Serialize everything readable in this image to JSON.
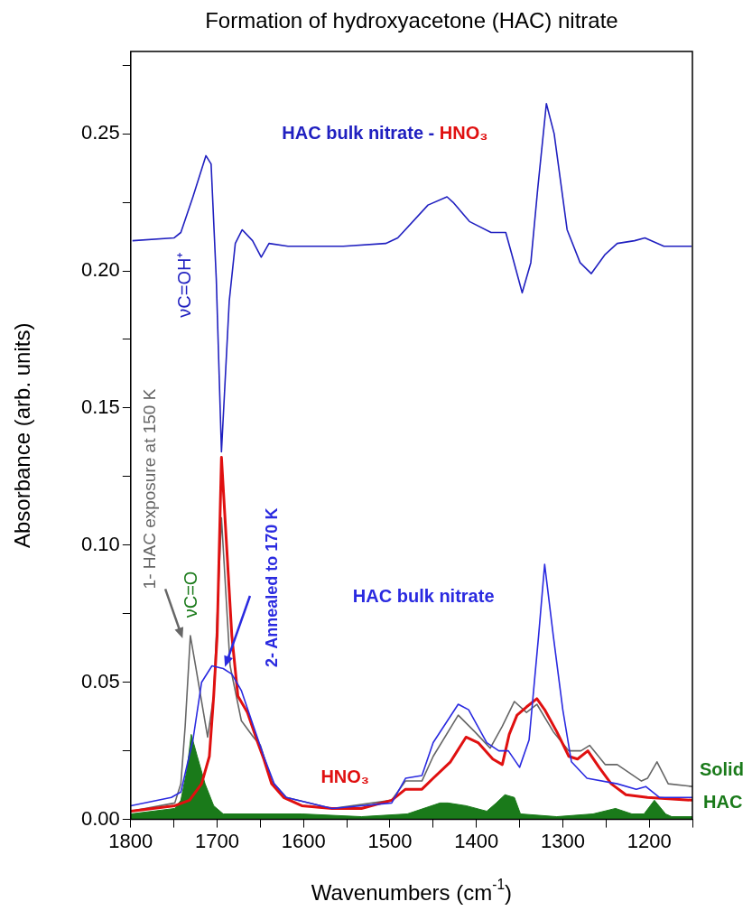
{
  "chart_data": {
    "type": "line",
    "title": "Formation of hydroxyacetone (HAC) nitrate",
    "xlabel": "Wavenumbers (cm$^{-1}$)",
    "ylabel": "Absorbance (arb. units)",
    "xlim": [
      1800,
      1150
    ],
    "xticks": [
      1800,
      {
        "value": 1750,
        "label": null
      },
      1700,
      {
        "value": 1650,
        "label": null
      },
      1600,
      {
        "value": 1550,
        "label": null
      },
      1500,
      {
        "value": 1450,
        "label": null
      },
      1400,
      {
        "value": 1350,
        "label": null
      },
      1300,
      {
        "value": 1250,
        "label": null
      },
      1200,
      {
        "value": 1150,
        "label": null
      }
    ],
    "ylim": [
      0,
      0.28
    ],
    "yticks": [
      {
        "value": 0,
        "label": "0.00"
      },
      {
        "value": 0.025,
        "label": null
      },
      0.05,
      {
        "value": 0.075,
        "label": null
      },
      {
        "value": 0.1,
        "label": "0.10"
      },
      {
        "value": 0.125,
        "label": null
      },
      0.15,
      {
        "value": 0.175,
        "label": null
      },
      {
        "value": 0.2,
        "label": "0.20"
      },
      {
        "value": 0.225,
        "label": null
      },
      0.25,
      {
        "value": 0.275,
        "label": null
      }
    ],
    "legend": false,
    "series": [
      {
        "name": "HAC bulk nitrate - HNO₃",
        "color": "#2020c0",
        "x": [
          1798,
          1750,
          1742,
          1728,
          1713,
          1707,
          1701,
          1695,
          1686,
          1679,
          1671,
          1659,
          1649,
          1640,
          1618,
          1554,
          1505,
          1491,
          1456,
          1434,
          1427,
          1408,
          1383,
          1366,
          1359,
          1347,
          1337,
          1329,
          1319,
          1310,
          1295,
          1280,
          1267,
          1251,
          1237,
          1217,
          1205,
          1183,
          1151
        ],
        "values": [
          0.211,
          0.212,
          0.214,
          0.227,
          0.242,
          0.239,
          0.197,
          0.134,
          0.189,
          0.21,
          0.215,
          0.211,
          0.205,
          0.21,
          0.209,
          0.209,
          0.21,
          0.212,
          0.224,
          0.227,
          0.225,
          0.218,
          0.214,
          0.214,
          0.206,
          0.192,
          0.203,
          0.23,
          0.261,
          0.25,
          0.215,
          0.203,
          0.199,
          0.206,
          0.21,
          0.211,
          0.212,
          0.209,
          0.209
        ]
      },
      {
        "name": "HAC bulk nitrate",
        "color": "#2a2ae0",
        "x": [
          1800,
          1753,
          1742,
          1728,
          1718,
          1706,
          1693,
          1683,
          1672,
          1658,
          1646,
          1634,
          1620,
          1567,
          1498,
          1482,
          1463,
          1450,
          1421,
          1409,
          1388,
          1374,
          1363,
          1350,
          1339,
          1328,
          1321,
          1311,
          1300,
          1290,
          1272,
          1237,
          1215,
          1204,
          1188,
          1150
        ],
        "values": [
          0.005,
          0.008,
          0.01,
          0.029,
          0.05,
          0.056,
          0.055,
          0.053,
          0.047,
          0.034,
          0.023,
          0.013,
          0.008,
          0.004,
          0.006,
          0.015,
          0.016,
          0.028,
          0.042,
          0.04,
          0.028,
          0.025,
          0.025,
          0.019,
          0.029,
          0.067,
          0.093,
          0.067,
          0.04,
          0.021,
          0.015,
          0.013,
          0.011,
          0.012,
          0.008,
          0.008
        ]
      },
      {
        "name": "HNO₃",
        "color": "#e01010",
        "x": [
          1800,
          1749,
          1732,
          1718,
          1709,
          1704,
          1700,
          1695,
          1683,
          1676,
          1665,
          1653,
          1646,
          1637,
          1623,
          1602,
          1567,
          1533,
          1498,
          1482,
          1463,
          1450,
          1430,
          1412,
          1398,
          1381,
          1370,
          1362,
          1353,
          1342,
          1330,
          1321,
          1307,
          1293,
          1283,
          1271,
          1258,
          1244,
          1227,
          1202,
          1150
        ],
        "values": [
          0.003,
          0.005,
          0.007,
          0.013,
          0.023,
          0.045,
          0.067,
          0.132,
          0.067,
          0.045,
          0.039,
          0.028,
          0.022,
          0.013,
          0.008,
          0.005,
          0.004,
          0.004,
          0.007,
          0.011,
          0.011,
          0.015,
          0.021,
          0.03,
          0.028,
          0.022,
          0.02,
          0.031,
          0.038,
          0.041,
          0.044,
          0.04,
          0.032,
          0.023,
          0.022,
          0.025,
          0.019,
          0.013,
          0.009,
          0.008,
          0.007
        ]
      },
      {
        "name": "1- HAC exposure at 150 K",
        "color": "#666666",
        "x": [
          1800,
          1749,
          1742,
          1737,
          1731,
          1725,
          1711,
          1704,
          1695,
          1685,
          1672,
          1658,
          1650,
          1637,
          1620,
          1567,
          1498,
          1482,
          1463,
          1450,
          1421,
          1402,
          1384,
          1370,
          1356,
          1342,
          1330,
          1311,
          1293,
          1279,
          1269,
          1251,
          1237,
          1209,
          1202,
          1191,
          1178,
          1150
        ],
        "values": [
          0.003,
          0.006,
          0.013,
          0.034,
          0.067,
          0.056,
          0.03,
          0.045,
          0.11,
          0.056,
          0.036,
          0.03,
          0.027,
          0.014,
          0.008,
          0.004,
          0.007,
          0.014,
          0.014,
          0.023,
          0.038,
          0.032,
          0.026,
          0.034,
          0.043,
          0.039,
          0.042,
          0.032,
          0.025,
          0.025,
          0.027,
          0.02,
          0.02,
          0.014,
          0.015,
          0.021,
          0.013,
          0.012
        ]
      },
      {
        "name": "Solid HAC",
        "type": "area",
        "color": "#1a7a1a",
        "x": [
          1800,
          1749,
          1742,
          1735,
          1730,
          1723,
          1714,
          1704,
          1693,
          1602,
          1533,
          1480,
          1442,
          1433,
          1412,
          1388,
          1377,
          1367,
          1356,
          1349,
          1307,
          1265,
          1239,
          1220,
          1206,
          1194,
          1181,
          1174,
          1150
        ],
        "values": [
          0.002,
          0.004,
          0.007,
          0.018,
          0.031,
          0.023,
          0.013,
          0.005,
          0.002,
          0.002,
          0.001,
          0.002,
          0.006,
          0.006,
          0.005,
          0.003,
          0.006,
          0.009,
          0.008,
          0.002,
          0.001,
          0.002,
          0.004,
          0.002,
          0.002,
          0.007,
          0.002,
          0.001,
          0.001
        ]
      }
    ],
    "annotations": [
      {
        "text": "2- Annealed to 170 K",
        "x": 1691,
        "y": 0.0556
      },
      "νC=O",
      "νC=OH⁺"
    ]
  }
}
